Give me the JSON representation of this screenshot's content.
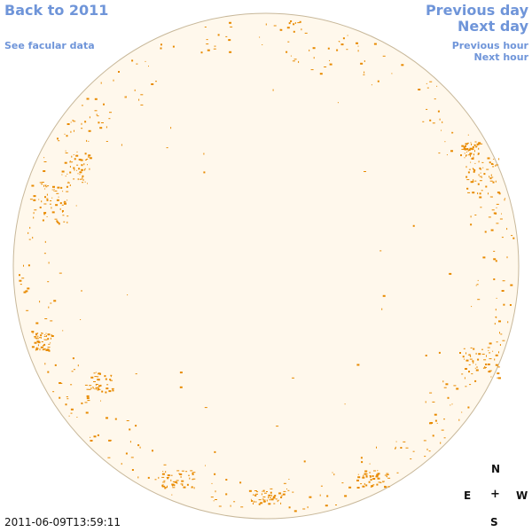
{
  "nav": {
    "back": "Back to 2011",
    "facular": "See facular data",
    "prev_day": "Previous day",
    "next_day": "Next day",
    "prev_hour": "Previous hour",
    "next_hour": "Next hour"
  },
  "compass": {
    "north": "N",
    "east": "E",
    "center": "+",
    "west": "W",
    "south": "S"
  },
  "timestamp": "2011-06-09T13:59:11",
  "colors": {
    "disk_fill": "#fff8ec",
    "disk_edge": "#c8b89a",
    "feature": "#e88a00",
    "link": "#6f95d9"
  }
}
